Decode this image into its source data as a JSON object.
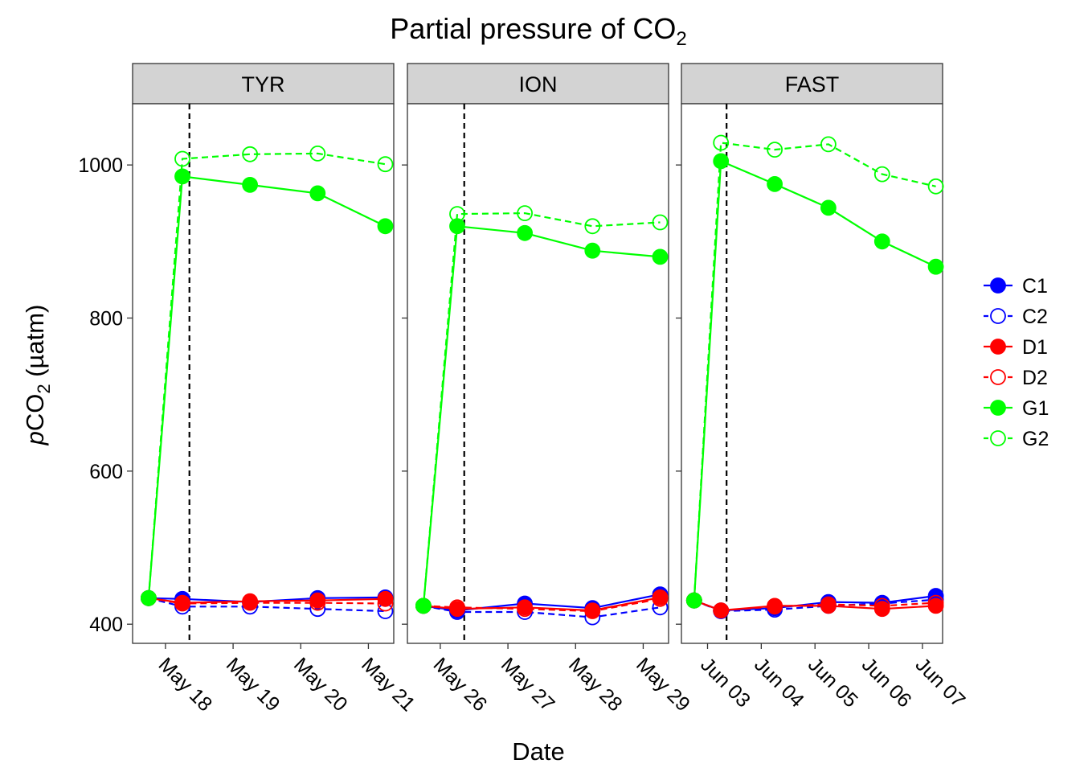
{
  "chart_data": {
    "type": "line",
    "title": "Partial pressure of CO",
    "title_subscript": "2",
    "xlabel": "Date",
    "ylabel_italic": "p",
    "ylabel_main": "CO",
    "ylabel_sub": "2",
    "ylabel_unit": " (µatm)",
    "ylim": [
      375,
      1080
    ],
    "yticks": [
      400,
      600,
      800,
      1000
    ],
    "grid": false,
    "legend_position": "right",
    "series_styles": [
      {
        "name": "C1",
        "color": "#0000FF",
        "filled": true,
        "dashed": false
      },
      {
        "name": "C2",
        "color": "#0000FF",
        "filled": false,
        "dashed": true
      },
      {
        "name": "D1",
        "color": "#FF0000",
        "filled": true,
        "dashed": false
      },
      {
        "name": "D2",
        "color": "#FF0000",
        "filled": false,
        "dashed": true
      },
      {
        "name": "G1",
        "color": "#00FF00",
        "filled": true,
        "dashed": false
      },
      {
        "name": "G2",
        "color": "#00FF00",
        "filled": false,
        "dashed": true
      }
    ],
    "panels": [
      {
        "name": "TYR",
        "xlim": [
          "2016-05-17T12:20",
          "2016-05-21T09:00"
        ],
        "xticks": [
          "May 18",
          "May 19",
          "May 20",
          "May 21"
        ],
        "xtick_dates": [
          "2016-05-18",
          "2016-05-19",
          "2016-05-20",
          "2016-05-21"
        ],
        "vline": "2016-05-18T08:30",
        "x": [
          "2016-05-17T18:00",
          "2016-05-18T06:00",
          "2016-05-19T06:00",
          "2016-05-20T06:00",
          "2016-05-21T06:00"
        ],
        "series": [
          {
            "name": "C1",
            "values": [
              434,
              433,
              429,
              434,
              435
            ]
          },
          {
            "name": "C2",
            "values": [
              434,
              423,
              423,
              420,
              417
            ]
          },
          {
            "name": "D1",
            "values": [
              434,
              428,
              430,
              431,
              433
            ]
          },
          {
            "name": "D2",
            "values": [
              434,
              427,
              428,
              428,
              427
            ]
          },
          {
            "name": "G1",
            "values": [
              434,
              985,
              974,
              963,
              920
            ]
          },
          {
            "name": "G2",
            "values": [
              434,
              1008,
              1014,
              1015,
              1001
            ]
          }
        ]
      },
      {
        "name": "ION",
        "xlim": [
          "2016-05-25T12:20",
          "2016-05-29T09:00"
        ],
        "xticks": [
          "May 26",
          "May 27",
          "May 28",
          "May 29"
        ],
        "xtick_dates": [
          "2016-05-26",
          "2016-05-27",
          "2016-05-28",
          "2016-05-29"
        ],
        "vline": "2016-05-26T08:30",
        "x": [
          "2016-05-25T18:00",
          "2016-05-26T06:00",
          "2016-05-27T06:00",
          "2016-05-28T06:00",
          "2016-05-29T06:00"
        ],
        "series": [
          {
            "name": "C1",
            "values": [
              424,
              418,
              427,
              421,
              439
            ]
          },
          {
            "name": "C2",
            "values": [
              424,
              416,
              416,
              409,
              422
            ]
          },
          {
            "name": "D1",
            "values": [
              424,
              420,
              422,
              418,
              435
            ]
          },
          {
            "name": "D2",
            "values": [
              424,
              422,
              420,
              417,
              433
            ]
          },
          {
            "name": "G1",
            "values": [
              424,
              920,
              911,
              888,
              880
            ]
          },
          {
            "name": "G2",
            "values": [
              424,
              936,
              937,
              920,
              925
            ]
          }
        ]
      },
      {
        "name": "FAST",
        "xlim": [
          "2016-06-02T12:20",
          "2016-06-07T09:00"
        ],
        "xticks": [
          "Jun 03",
          "Jun 04",
          "Jun 05",
          "Jun 06",
          "Jun 07"
        ],
        "xtick_dates": [
          "2016-06-03",
          "2016-06-04",
          "2016-06-05",
          "2016-06-06",
          "2016-06-07"
        ],
        "vline": "2016-06-03T08:30",
        "x": [
          "2016-06-02T18:00",
          "2016-06-03T06:00",
          "2016-06-04T06:00",
          "2016-06-05T06:00",
          "2016-06-06T06:00",
          "2016-06-07T06:00"
        ],
        "series": [
          {
            "name": "C1",
            "values": [
              431,
              418,
              421,
              429,
              428,
              437
            ]
          },
          {
            "name": "C2",
            "values": [
              431,
              417,
              419,
              424,
              427,
              432
            ]
          },
          {
            "name": "D1",
            "values": [
              431,
              418,
              424,
              424,
              420,
              424
            ]
          },
          {
            "name": "D2",
            "values": [
              431,
              418,
              423,
              426,
              424,
              428
            ]
          },
          {
            "name": "G1",
            "values": [
              431,
              1005,
              975,
              944,
              900,
              867
            ]
          },
          {
            "name": "G2",
            "values": [
              431,
              1029,
              1020,
              1027,
              988,
              972
            ]
          }
        ]
      }
    ]
  }
}
